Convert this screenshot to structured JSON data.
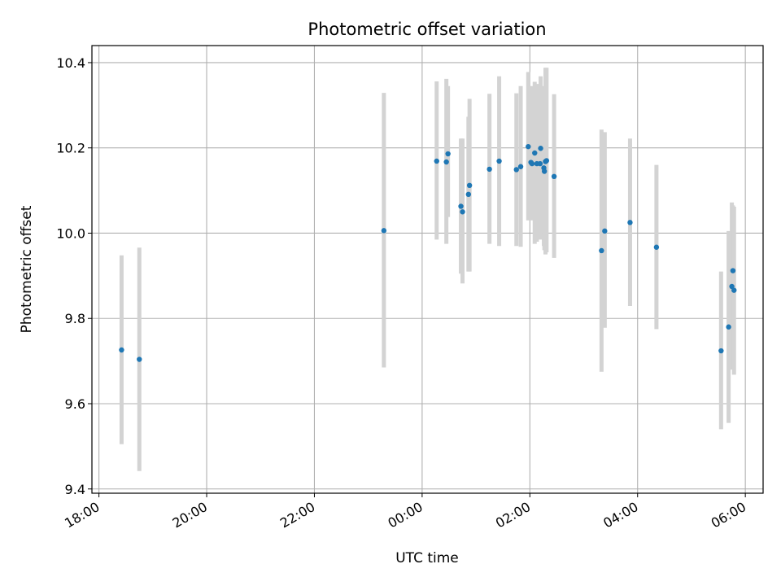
{
  "chart_data": {
    "type": "scatter",
    "title": "Photometric offset variation",
    "xlabel": "UTC time",
    "ylabel": "Photometric offset",
    "x_unit": "hours",
    "xlim": [
      17.87,
      30.33
    ],
    "ylim": [
      9.39,
      10.44
    ],
    "x_ticks": [
      {
        "value": 18,
        "label": "18:00"
      },
      {
        "value": 20,
        "label": "20:00"
      },
      {
        "value": 22,
        "label": "22:00"
      },
      {
        "value": 24,
        "label": "00:00"
      },
      {
        "value": 26,
        "label": "02:00"
      },
      {
        "value": 28,
        "label": "04:00"
      },
      {
        "value": 30,
        "label": "06:00"
      }
    ],
    "y_ticks": [
      {
        "value": 9.4,
        "label": "9.4"
      },
      {
        "value": 9.6,
        "label": "9.6"
      },
      {
        "value": 9.8,
        "label": "9.8"
      },
      {
        "value": 10.0,
        "label": "10.0"
      },
      {
        "value": 10.2,
        "label": "10.2"
      },
      {
        "value": 10.4,
        "label": "10.4"
      }
    ],
    "grid": true,
    "point_color": "#1f77b4",
    "errorbar_color": "#d3d3d3",
    "points": [
      {
        "x": 18.42,
        "y": 9.726,
        "lo": 9.505,
        "hi": 9.948
      },
      {
        "x": 18.75,
        "y": 9.704,
        "lo": 9.442,
        "hi": 9.966
      },
      {
        "x": 23.29,
        "y": 10.006,
        "lo": 9.685,
        "hi": 10.329
      },
      {
        "x": 24.27,
        "y": 10.169,
        "lo": 9.985,
        "hi": 10.356
      },
      {
        "x": 24.45,
        "y": 10.167,
        "lo": 9.975,
        "hi": 10.362
      },
      {
        "x": 24.48,
        "y": 10.186,
        "lo": 10.038,
        "hi": 10.345
      },
      {
        "x": 24.72,
        "y": 10.063,
        "lo": 9.905,
        "hi": 10.222
      },
      {
        "x": 24.75,
        "y": 10.05,
        "lo": 9.882,
        "hi": 10.222
      },
      {
        "x": 24.86,
        "y": 10.091,
        "lo": 9.91,
        "hi": 10.273
      },
      {
        "x": 24.88,
        "y": 10.112,
        "lo": 9.91,
        "hi": 10.315
      },
      {
        "x": 25.25,
        "y": 10.15,
        "lo": 9.975,
        "hi": 10.327
      },
      {
        "x": 25.43,
        "y": 10.169,
        "lo": 9.97,
        "hi": 10.368
      },
      {
        "x": 25.75,
        "y": 10.149,
        "lo": 9.97,
        "hi": 10.328
      },
      {
        "x": 25.83,
        "y": 10.156,
        "lo": 9.968,
        "hi": 10.345
      },
      {
        "x": 25.97,
        "y": 10.203,
        "lo": 10.03,
        "hi": 10.378
      },
      {
        "x": 26.02,
        "y": 10.166,
        "lo": 10.031,
        "hi": 10.302
      },
      {
        "x": 26.04,
        "y": 10.163,
        "lo": 10.03,
        "hi": 10.345
      },
      {
        "x": 26.09,
        "y": 10.188,
        "lo": 9.975,
        "hi": 10.355
      },
      {
        "x": 26.13,
        "y": 10.163,
        "lo": 9.98,
        "hi": 10.35
      },
      {
        "x": 26.19,
        "y": 10.163,
        "lo": 9.985,
        "hi": 10.342
      },
      {
        "x": 26.2,
        "y": 10.199,
        "lo": 10.03,
        "hi": 10.368
      },
      {
        "x": 26.26,
        "y": 10.153,
        "lo": 9.97,
        "hi": 10.345
      },
      {
        "x": 26.27,
        "y": 10.145,
        "lo": 9.96,
        "hi": 10.33
      },
      {
        "x": 26.29,
        "y": 10.168,
        "lo": 9.95,
        "hi": 10.388
      },
      {
        "x": 26.31,
        "y": 10.17,
        "lo": 9.955,
        "hi": 10.388
      },
      {
        "x": 26.45,
        "y": 10.133,
        "lo": 9.942,
        "hi": 10.326
      },
      {
        "x": 27.33,
        "y": 9.959,
        "lo": 9.675,
        "hi": 10.243
      },
      {
        "x": 27.39,
        "y": 10.005,
        "lo": 9.778,
        "hi": 10.237
      },
      {
        "x": 27.86,
        "y": 10.025,
        "lo": 9.829,
        "hi": 10.222
      },
      {
        "x": 28.35,
        "y": 9.967,
        "lo": 9.775,
        "hi": 10.16
      },
      {
        "x": 29.55,
        "y": 9.724,
        "lo": 9.54,
        "hi": 9.91
      },
      {
        "x": 29.69,
        "y": 9.78,
        "lo": 9.555,
        "hi": 10.005
      },
      {
        "x": 29.75,
        "y": 9.875,
        "lo": 9.68,
        "hi": 10.072
      },
      {
        "x": 29.77,
        "y": 9.912,
        "lo": 9.758,
        "hi": 10.065
      },
      {
        "x": 29.79,
        "y": 9.866,
        "lo": 9.668,
        "hi": 10.062
      }
    ]
  }
}
